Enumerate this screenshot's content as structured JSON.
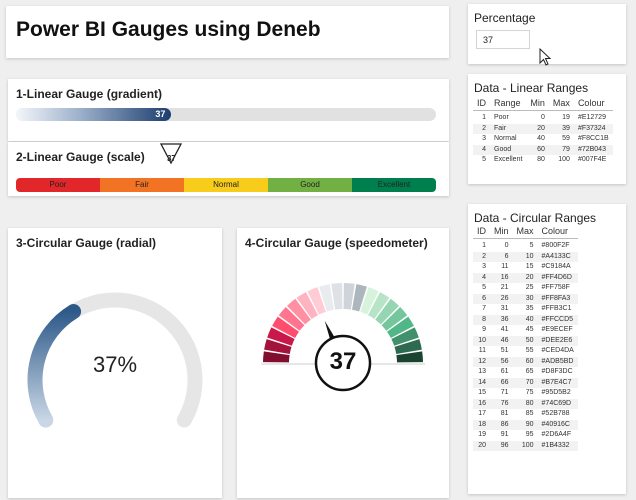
{
  "header": {
    "title": "Power BI Gauges using Deneb"
  },
  "percentage": {
    "title": "Percentage",
    "value": "37"
  },
  "gauge1": {
    "title": "1-Linear Gauge (gradient)",
    "value": 37
  },
  "gauge2": {
    "title": "2-Linear Gauge (scale)",
    "value": 37,
    "segments": [
      {
        "label": "Poor",
        "color": "#E12729"
      },
      {
        "label": "Fair",
        "color": "#F37324"
      },
      {
        "label": "Normal",
        "color": "#F8CC1B"
      },
      {
        "label": "Good",
        "color": "#72B043"
      },
      {
        "label": "Excellent",
        "color": "#007F4E"
      }
    ]
  },
  "gauge3": {
    "title": "3-Circular Gauge (radial)",
    "value": 37,
    "label": "37%",
    "accent": "#2E5A8A"
  },
  "gauge4": {
    "title": "4-Circular Gauge (speedometer)",
    "value": 37
  },
  "linear_ranges": {
    "title": "Data - Linear Ranges",
    "columns": [
      "ID",
      "Range",
      "Min",
      "Max",
      "Colour"
    ],
    "rows": [
      [
        "1",
        "Poor",
        "0",
        "19",
        "#E12729"
      ],
      [
        "2",
        "Fair",
        "20",
        "39",
        "#F37324"
      ],
      [
        "3",
        "Normal",
        "40",
        "59",
        "#F8CC1B"
      ],
      [
        "4",
        "Good",
        "60",
        "79",
        "#72B043"
      ],
      [
        "5",
        "Excellent",
        "80",
        "100",
        "#007F4E"
      ]
    ]
  },
  "circular_ranges": {
    "title": "Data - Circular Ranges",
    "columns": [
      "ID",
      "Min",
      "Max",
      "Colour"
    ],
    "rows": [
      [
        "1",
        "0",
        "5",
        "#800F2F"
      ],
      [
        "2",
        "6",
        "10",
        "#A4133C"
      ],
      [
        "3",
        "11",
        "15",
        "#C9184A"
      ],
      [
        "4",
        "16",
        "20",
        "#FF4D6D"
      ],
      [
        "5",
        "21",
        "25",
        "#FF758F"
      ],
      [
        "6",
        "26",
        "30",
        "#FF8FA3"
      ],
      [
        "7",
        "31",
        "35",
        "#FFB3C1"
      ],
      [
        "8",
        "36",
        "40",
        "#FFCCD5"
      ],
      [
        "9",
        "41",
        "45",
        "#E9ECEF"
      ],
      [
        "10",
        "46",
        "50",
        "#DEE2E6"
      ],
      [
        "11",
        "51",
        "55",
        "#CED4DA"
      ],
      [
        "12",
        "56",
        "60",
        "#ADB5BD"
      ],
      [
        "13",
        "61",
        "65",
        "#D8F3DC"
      ],
      [
        "14",
        "66",
        "70",
        "#B7E4C7"
      ],
      [
        "15",
        "71",
        "75",
        "#95D5B2"
      ],
      [
        "16",
        "76",
        "80",
        "#74C69D"
      ],
      [
        "17",
        "81",
        "85",
        "#52B788"
      ],
      [
        "18",
        "86",
        "90",
        "#40916C"
      ],
      [
        "19",
        "91",
        "95",
        "#2D6A4F"
      ],
      [
        "20",
        "96",
        "100",
        "#1B4332"
      ]
    ]
  }
}
